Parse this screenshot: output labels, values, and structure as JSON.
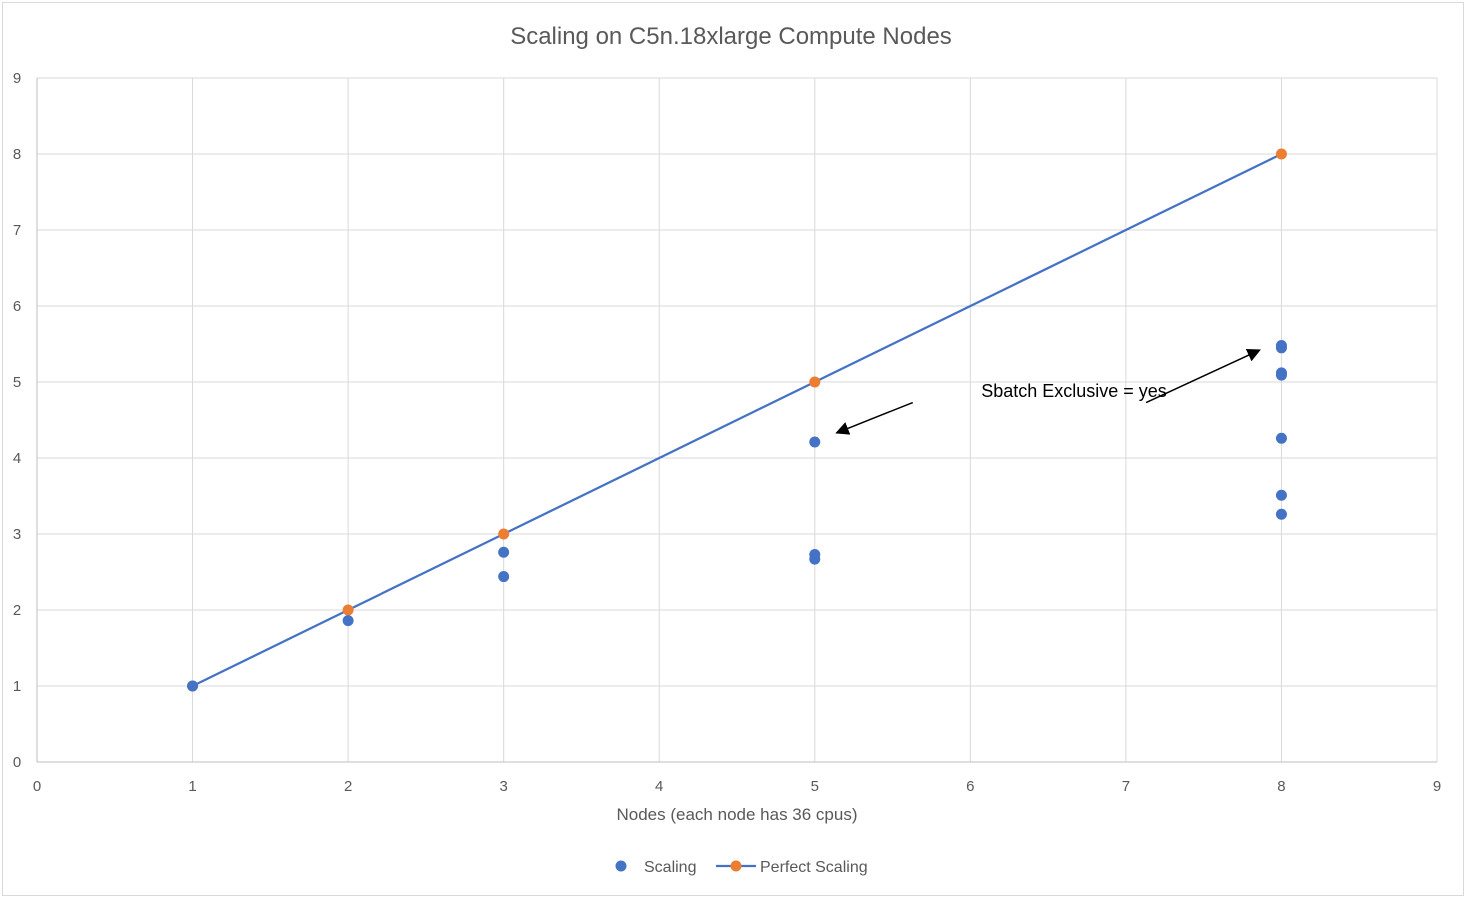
{
  "chart_data": {
    "type": "scatter",
    "title": "Scaling on C5n.18xlarge Compute Nodes",
    "xlabel": "Nodes (each node has 36 cpus)",
    "ylabel": "",
    "xlim": [
      0,
      9
    ],
    "ylim": [
      0,
      9
    ],
    "xticks": [
      "0",
      "1",
      "2",
      "3",
      "4",
      "5",
      "6",
      "7",
      "8",
      "9"
    ],
    "yticks": [
      "0",
      "1",
      "2",
      "3",
      "4",
      "5",
      "6",
      "7",
      "8",
      "9"
    ],
    "grid": true,
    "legend_position": "bottom",
    "series": [
      {
        "name": "Scaling",
        "style": "markers",
        "color": "#4472C4",
        "points": [
          {
            "x": 1,
            "y": 1.0
          },
          {
            "x": 2,
            "y": 1.86
          },
          {
            "x": 3,
            "y": 2.76
          },
          {
            "x": 3,
            "y": 2.44
          },
          {
            "x": 5,
            "y": 4.21
          },
          {
            "x": 5,
            "y": 2.73
          },
          {
            "x": 5,
            "y": 2.67
          },
          {
            "x": 8,
            "y": 5.48
          },
          {
            "x": 8,
            "y": 5.45
          },
          {
            "x": 8,
            "y": 5.12
          },
          {
            "x": 8,
            "y": 5.09
          },
          {
            "x": 8,
            "y": 4.26
          },
          {
            "x": 8,
            "y": 3.51
          },
          {
            "x": 8,
            "y": 3.26
          }
        ]
      },
      {
        "name": "Perfect Scaling",
        "style": "line+markers",
        "color": "#ED7D31",
        "line_color": "#4472C4",
        "points": [
          {
            "x": 1,
            "y": 1
          },
          {
            "x": 2,
            "y": 2
          },
          {
            "x": 3,
            "y": 3
          },
          {
            "x": 5,
            "y": 5
          },
          {
            "x": 8,
            "y": 8
          }
        ]
      }
    ],
    "annotations": [
      {
        "text": "Sbatch Exclusive = yes",
        "text_at": {
          "x": 6.07,
          "y": 4.8
        },
        "arrows": [
          {
            "from": {
              "x": 5.63,
              "y": 4.73
            },
            "to": {
              "x": 5.14,
              "y": 4.33
            }
          },
          {
            "from": {
              "x": 7.13,
              "y": 4.73
            },
            "to": {
              "x": 7.86,
              "y": 5.42
            }
          }
        ]
      }
    ]
  }
}
